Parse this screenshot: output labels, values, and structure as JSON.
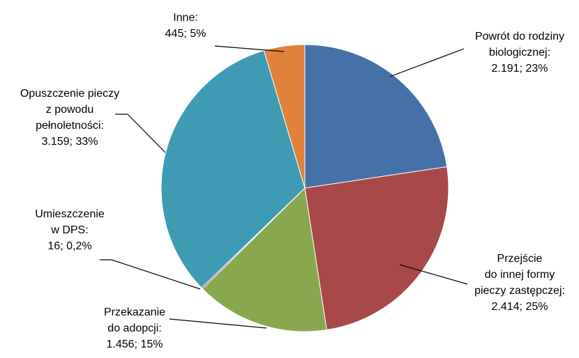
{
  "chart_data": {
    "type": "pie",
    "title": "",
    "slices": [
      {
        "name": "Powrót do rodziny biologicznej",
        "value": 2191,
        "percent": 23,
        "label_lines": [
          "Powrót do rodziny",
          "biologicznej:",
          "2.191;  23%"
        ],
        "color": "#4472A8"
      },
      {
        "name": "Przejście do innej formy pieczy zastępczej",
        "value": 2414,
        "percent": 25,
        "label_lines": [
          "Przejście",
          "do innej formy",
          "pieczy zastępczej:",
          "2.414;  25%"
        ],
        "color": "#A84848"
      },
      {
        "name": "Przekazanie do adopcji",
        "value": 1456,
        "percent": 15,
        "label_lines": [
          "Przekazanie",
          "do adopcji:",
          "1.456; 15%"
        ],
        "color": "#88A84E"
      },
      {
        "name": "Umieszczenie w DPS",
        "value": 16,
        "percent": 0.2,
        "label_lines": [
          "Umieszczenie",
          "w DPS:",
          "16;  0,2%"
        ],
        "color": "#6B4E8C"
      },
      {
        "name": "Opuszczenie pieczy z powodu pełnoletności",
        "value": 3159,
        "percent": 33,
        "label_lines": [
          "Opuszczenie pieczy",
          "z powodu",
          "pełnoletności:",
          "3.159;  33%"
        ],
        "color": "#3F9BB3"
      },
      {
        "name": "Inne",
        "value": 445,
        "percent": 5,
        "label_lines": [
          "Inne:",
          "445;  5%"
        ],
        "color": "#E0823C"
      }
    ]
  }
}
